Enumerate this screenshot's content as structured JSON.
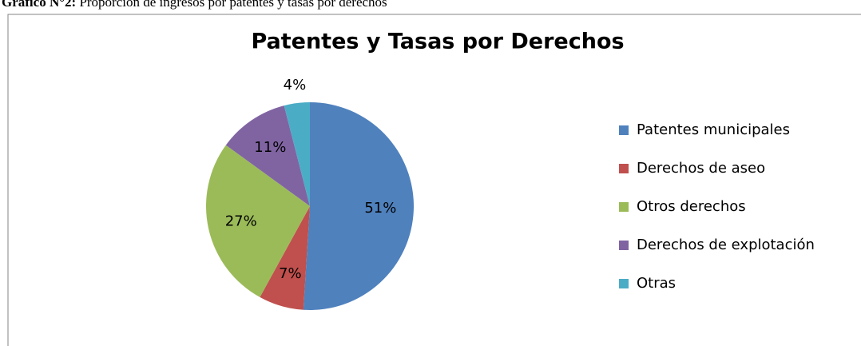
{
  "caption": {
    "label": "Gráfico N°2:",
    "text": "Proporción de ingresos por patentes y tasas por derechos"
  },
  "chart_data": {
    "type": "pie",
    "title": "Patentes y Tasas por Derechos",
    "categories": [
      "Patentes municipales",
      "Derechos de aseo",
      "Otros derechos",
      "Derechos de explotación",
      "Otras"
    ],
    "values": [
      51,
      7,
      27,
      11,
      4
    ],
    "value_labels": [
      "51%",
      "7%",
      "27%",
      "11%",
      "4%"
    ],
    "colors": [
      "#4f81bd",
      "#c0504d",
      "#9bbb59",
      "#8064a2",
      "#4bacc6"
    ],
    "legend": "right"
  }
}
